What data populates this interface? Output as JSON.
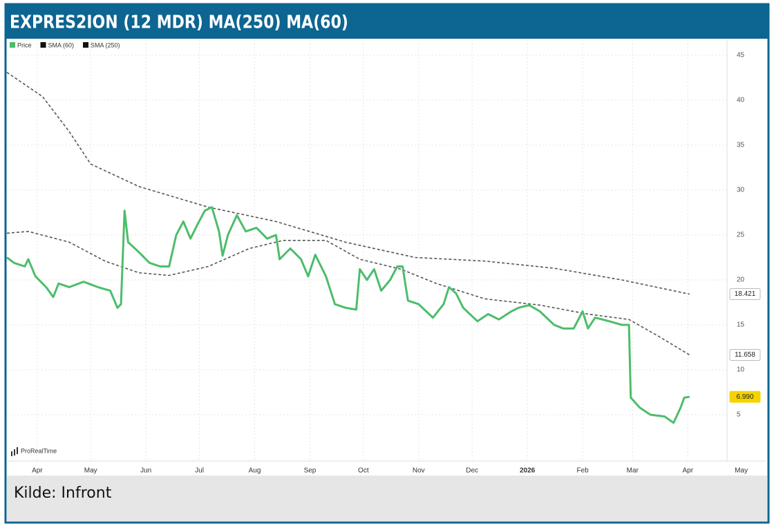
{
  "chart_data": {
    "type": "line",
    "title": "EXPRES2ION (12 MDR) MA(250) MA(60)",
    "source": "Kilde: Infront",
    "watermark": "ProRealTime",
    "xlim": [
      -17,
      387
    ],
    "xticks": [
      {
        "value": 0,
        "label": "Apr"
      },
      {
        "value": 30,
        "label": "May"
      },
      {
        "value": 61,
        "label": "Jun"
      },
      {
        "value": 91,
        "label": "Jul"
      },
      {
        "value": 122,
        "label": "Aug"
      },
      {
        "value": 153,
        "label": "Sep"
      },
      {
        "value": 183,
        "label": "Oct"
      },
      {
        "value": 214,
        "label": "Nov"
      },
      {
        "value": 244,
        "label": "Dec"
      },
      {
        "value": 275,
        "label": "2026"
      },
      {
        "value": 306,
        "label": "Feb"
      },
      {
        "value": 334,
        "label": "Mar"
      },
      {
        "value": 365,
        "label": "Apr"
      },
      {
        "value": 395,
        "label": "May"
      }
    ],
    "ylim": [
      0,
      46.7
    ],
    "yticks": [
      5,
      10,
      15,
      20,
      25,
      30,
      35,
      40,
      45
    ],
    "grid": true,
    "legend": "top-left",
    "series": [
      {
        "name": "Price",
        "color": "#4cbd6a",
        "last_label": "6.990",
        "x": [
          -17,
          -13,
          -7,
          -5,
          -1,
          5,
          9,
          12,
          18,
          26,
          34,
          41,
          45,
          47,
          49,
          51,
          57,
          63,
          69,
          74,
          78,
          82,
          86,
          90,
          94,
          98,
          102,
          104,
          107,
          112,
          117,
          123,
          129,
          134,
          136,
          142,
          148,
          152,
          156,
          162,
          167,
          173,
          179,
          181,
          185,
          189,
          193,
          198,
          202,
          205,
          208,
          214,
          222,
          228,
          231,
          235,
          239,
          247,
          253,
          259,
          266,
          270,
          276,
          282,
          290,
          295,
          301,
          306,
          309,
          313,
          321,
          328,
          332,
          333,
          338,
          344,
          352,
          357,
          361,
          363,
          366
        ],
        "values": [
          22.5,
          21.9,
          21.5,
          22.3,
          20.4,
          19.2,
          18.1,
          19.6,
          19.2,
          19.8,
          19.2,
          18.8,
          16.9,
          17.3,
          27.7,
          24.2,
          23.1,
          21.9,
          21.5,
          21.5,
          25,
          26.5,
          24.6,
          26.2,
          27.7,
          28.1,
          25.4,
          22.7,
          25,
          27.2,
          25.4,
          25.8,
          24.6,
          25,
          22.3,
          23.5,
          22.3,
          20.4,
          22.8,
          20.4,
          17.3,
          16.9,
          16.7,
          21.2,
          20,
          21.2,
          18.8,
          20,
          21.5,
          21.5,
          17.7,
          17.3,
          15.8,
          17.3,
          19.2,
          18.5,
          16.9,
          15.4,
          16.2,
          15.6,
          16.5,
          16.9,
          17.2,
          16.5,
          15,
          14.6,
          14.6,
          16.5,
          14.6,
          15.8,
          15.4,
          15,
          15,
          6.9,
          5.8,
          5,
          4.8,
          4.1,
          5.8,
          6.9,
          6.99
        ]
      },
      {
        "name": "SMA (60)",
        "color": "#555555",
        "last_label": "11.658",
        "x": [
          -17,
          -5,
          18,
          38,
          57,
          74,
          96,
          119,
          138,
          162,
          181,
          204,
          224,
          251,
          282,
          309,
          332,
          348,
          366
        ],
        "values": [
          25.2,
          25.4,
          24.2,
          22.1,
          20.8,
          20.5,
          21.5,
          23.5,
          24.4,
          24.4,
          22.3,
          21.2,
          19.6,
          17.9,
          17.2,
          16.2,
          15.6,
          13.8,
          11.658
        ]
      },
      {
        "name": "SMA (250)",
        "color": "#555555",
        "last_label": "18.421",
        "x": [
          -17,
          3,
          18,
          30,
          57,
          96,
          134,
          173,
          212,
          251,
          290,
          328,
          366
        ],
        "values": [
          43.1,
          40.4,
          36.5,
          32.9,
          30.4,
          28.1,
          26.5,
          24.2,
          22.5,
          22.1,
          21.3,
          20,
          18.421
        ]
      }
    ]
  }
}
